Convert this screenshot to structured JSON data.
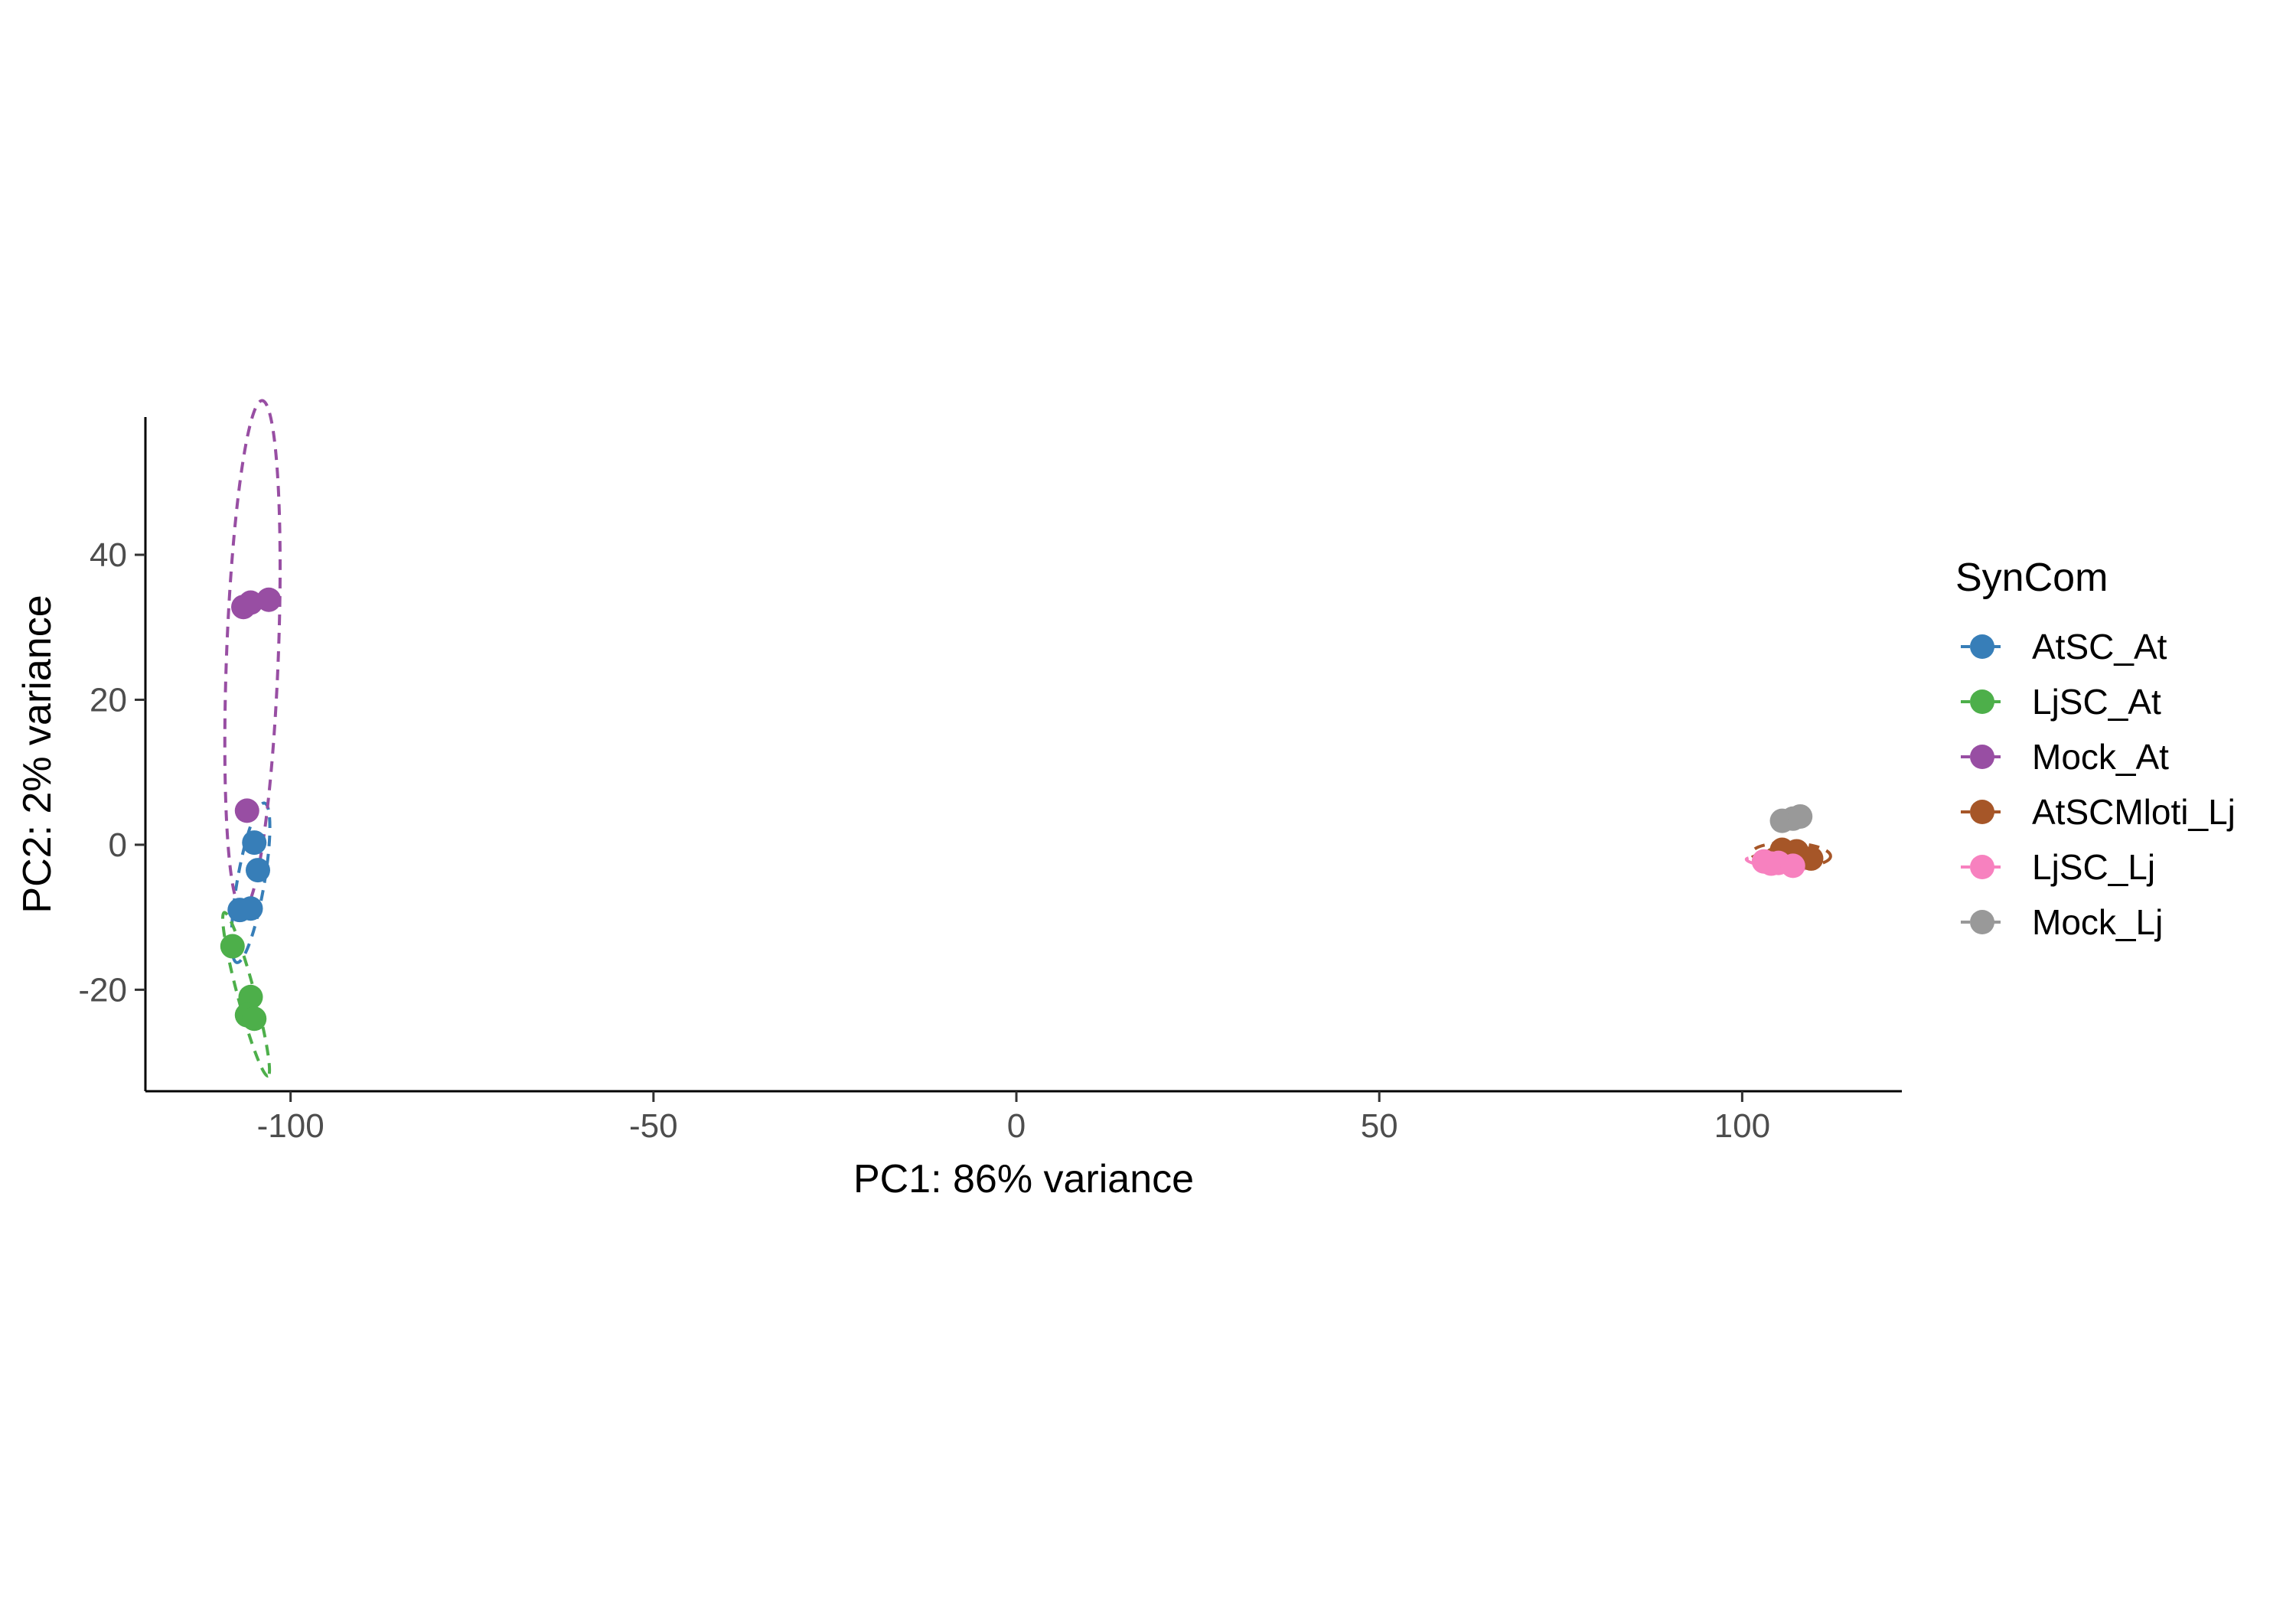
{
  "chart_data": {
    "type": "scatter",
    "title": "",
    "xlabel": "PC1: 86% variance",
    "ylabel": "PC2: 2% variance",
    "xlim": [
      -120,
      122
    ],
    "ylim": [
      -34,
      59
    ],
    "x_ticks": [
      -100,
      -50,
      0,
      50,
      100
    ],
    "x_tick_labels": [
      "-100",
      "-50",
      "0",
      "50",
      "100"
    ],
    "y_ticks": [
      -20,
      0,
      20,
      40
    ],
    "y_tick_labels": [
      "-20",
      "0",
      "20",
      "40"
    ],
    "grid": false,
    "legend": {
      "title": "SynCom",
      "position": "right"
    },
    "series": [
      {
        "name": "AtSC_At",
        "color": "#377EB8",
        "points": [
          [
            -105,
            0.3
          ],
          [
            -104.5,
            -3.5
          ],
          [
            -107,
            -9
          ],
          [
            -105.5,
            -8.8
          ]
        ],
        "ellipse": true
      },
      {
        "name": "LjSC_At",
        "color": "#4DAF4A",
        "points": [
          [
            -108,
            -14
          ],
          [
            -105.5,
            -21
          ],
          [
            -106,
            -23.5
          ],
          [
            -105,
            -24
          ]
        ],
        "ellipse": true
      },
      {
        "name": "Mock_At",
        "color": "#984EA3",
        "points": [
          [
            -106.5,
            32.8
          ],
          [
            -105.5,
            33.4
          ],
          [
            -103,
            33.8
          ],
          [
            -106,
            4.7
          ]
        ],
        "ellipse": true
      },
      {
        "name": "AtSCMloti_Lj",
        "color": "#A65628",
        "points": [
          [
            105.5,
            -0.7
          ],
          [
            107.5,
            -0.9
          ],
          [
            109.5,
            -1.9
          ],
          [
            104.5,
            -2
          ]
        ],
        "ellipse": true
      },
      {
        "name": "LjSC_Lj",
        "color": "#F781BF",
        "points": [
          [
            103,
            -2.3
          ],
          [
            104,
            -2.6
          ],
          [
            105,
            -2.5
          ],
          [
            107,
            -2.9
          ]
        ],
        "ellipse": true
      },
      {
        "name": "Mock_Lj",
        "color": "#999999",
        "points": [
          [
            105.5,
            3.3
          ],
          [
            107,
            3.6
          ],
          [
            108,
            3.9
          ]
        ],
        "ellipse": false
      }
    ]
  }
}
